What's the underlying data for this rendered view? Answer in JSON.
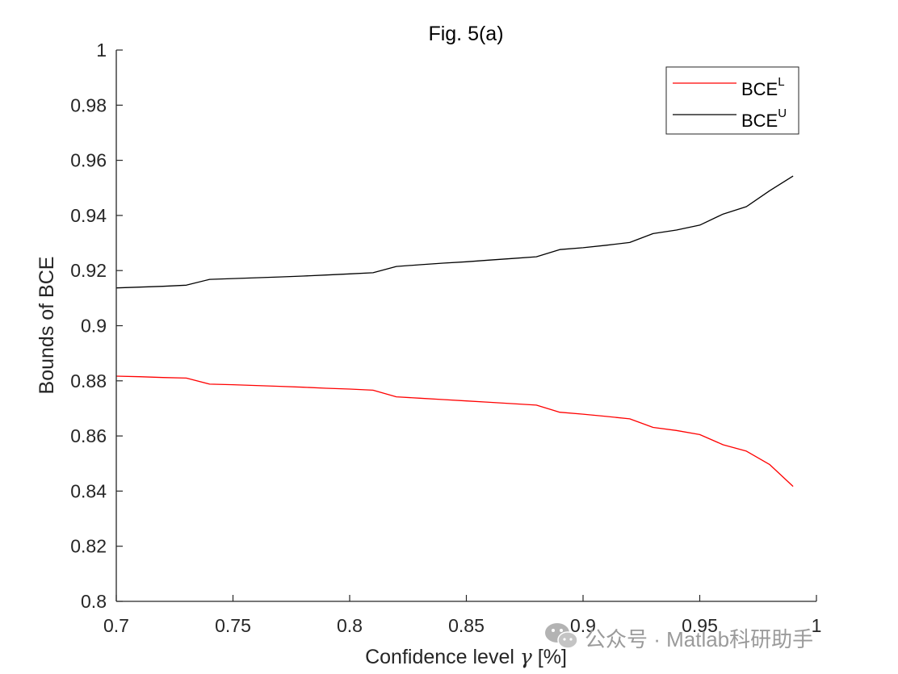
{
  "chart_data": {
    "type": "line",
    "title": "Fig. 5(a)",
    "xlabel_prefix": "Confidence level ",
    "xlabel_symbol": "γ",
    "xlabel_suffix": " [%]",
    "ylabel": "Bounds of BCE",
    "xlim": [
      0.7,
      1.0
    ],
    "ylim": [
      0.8,
      1.0
    ],
    "xticks": [
      0.7,
      0.75,
      0.8,
      0.85,
      0.9,
      0.95,
      1.0
    ],
    "xtick_labels": [
      "0.7",
      "0.75",
      "0.8",
      "0.85",
      "0.9",
      "0.95",
      "1"
    ],
    "yticks": [
      0.8,
      0.82,
      0.84,
      0.86,
      0.88,
      0.9,
      0.92,
      0.94,
      0.96,
      0.98,
      1.0
    ],
    "ytick_labels": [
      "0.8",
      "0.82",
      "0.84",
      "0.86",
      "0.88",
      "0.9",
      "0.92",
      "0.94",
      "0.96",
      "0.98",
      "1"
    ],
    "grid": false,
    "legend_location": "top-right",
    "x": [
      0.7,
      0.71,
      0.72,
      0.73,
      0.74,
      0.75,
      0.76,
      0.77,
      0.78,
      0.79,
      0.8,
      0.81,
      0.82,
      0.83,
      0.84,
      0.85,
      0.86,
      0.87,
      0.88,
      0.89,
      0.9,
      0.91,
      0.92,
      0.93,
      0.94,
      0.95,
      0.96,
      0.97,
      0.98,
      0.99
    ],
    "series": [
      {
        "name": "BCE",
        "name_sup": "L",
        "color": "#ff0000",
        "values": [
          0.8817,
          0.8815,
          0.8812,
          0.881,
          0.8788,
          0.8786,
          0.8783,
          0.878,
          0.8777,
          0.8773,
          0.877,
          0.8766,
          0.8742,
          0.8737,
          0.8732,
          0.8727,
          0.8722,
          0.8717,
          0.8712,
          0.8686,
          0.8679,
          0.8671,
          0.8662,
          0.8631,
          0.862,
          0.8605,
          0.8568,
          0.8545,
          0.8496,
          0.8417
        ]
      },
      {
        "name": "BCE",
        "name_sup": "U",
        "color": "#000000",
        "values": [
          0.9137,
          0.914,
          0.9143,
          0.9147,
          0.9168,
          0.9171,
          0.9174,
          0.9177,
          0.918,
          0.9184,
          0.9188,
          0.9192,
          0.9215,
          0.9221,
          0.9227,
          0.9232,
          0.9238,
          0.9244,
          0.925,
          0.9276,
          0.9283,
          0.9292,
          0.9302,
          0.9334,
          0.9347,
          0.9365,
          0.9405,
          0.9432,
          0.949,
          0.9543
        ]
      }
    ]
  },
  "watermark": {
    "text": "公众号 · Matlab科研助手",
    "icon": "wechat-icon"
  }
}
